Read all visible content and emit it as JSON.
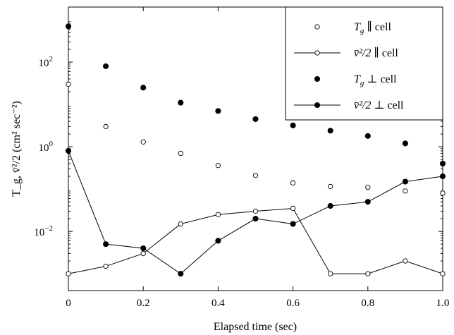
{
  "chart_data": {
    "type": "scatter",
    "xlabel": "Elapsed time (sec)",
    "ylabel": "T_g, v̄²/2 (cm² sec⁻²)",
    "xlim": [
      0,
      1
    ],
    "ylim": [
      0.0004,
      2000
    ],
    "yscale": "log",
    "x_ticks": [
      0,
      0.2,
      0.4,
      0.6,
      0.8,
      1.0
    ],
    "x_tick_labels": [
      "0",
      "0.2",
      "0.4",
      "0.6",
      "0.8",
      "1.0"
    ],
    "y_ticks": [
      0.01,
      1,
      100
    ],
    "y_tick_labels": [
      "10",
      "10",
      "10"
    ],
    "y_tick_exponents": [
      "−2",
      "0",
      "2"
    ],
    "grid": false,
    "legend_position": "top-right",
    "series": [
      {
        "name": "T_g ∥ cell",
        "legend_main": "T",
        "legend_sub": "g",
        "legend_rest": " ∥ cell",
        "marker": "open-circle",
        "line": false,
        "x": [
          0,
          0.1,
          0.2,
          0.3,
          0.4,
          0.5,
          0.6,
          0.7,
          0.8,
          0.9,
          1.0
        ],
        "values": [
          30,
          3.0,
          1.3,
          0.7,
          0.36,
          0.21,
          0.14,
          0.115,
          0.11,
          0.09,
          0.08
        ]
      },
      {
        "name": "v̄²/2 ∥ cell",
        "legend_main": "v̄²/2",
        "legend_sub": "",
        "legend_rest": " ∥ cell",
        "marker": "open-circle",
        "line": true,
        "x": [
          0,
          0.1,
          0.2,
          0.3,
          0.4,
          0.5,
          0.6,
          0.7,
          0.8,
          0.9,
          1.0
        ],
        "values": [
          0.001,
          0.0015,
          0.003,
          0.015,
          0.025,
          0.03,
          0.035,
          0.001,
          0.001,
          0.002,
          0.001
        ]
      },
      {
        "name": "T_g ⊥ cell",
        "legend_main": "T",
        "legend_sub": "g",
        "legend_rest": " ⊥ cell",
        "marker": "filled-circle",
        "line": false,
        "x": [
          0,
          0.1,
          0.2,
          0.3,
          0.4,
          0.5,
          0.6,
          0.7,
          0.8,
          0.9,
          1.0
        ],
        "values": [
          700,
          80,
          25,
          11,
          7,
          4.5,
          3.2,
          2.4,
          1.8,
          1.2,
          0.4
        ]
      },
      {
        "name": "v̄²/2 ⊥ cell",
        "legend_main": "v̄²/2",
        "legend_sub": "",
        "legend_rest": " ⊥ cell",
        "marker": "filled-circle",
        "line": true,
        "x": [
          0,
          0.1,
          0.2,
          0.3,
          0.4,
          0.5,
          0.6,
          0.7,
          0.8,
          0.9,
          1.0
        ],
        "values": [
          0.8,
          0.005,
          0.004,
          0.001,
          0.006,
          0.02,
          0.015,
          0.04,
          0.05,
          0.15,
          0.2
        ]
      }
    ]
  }
}
